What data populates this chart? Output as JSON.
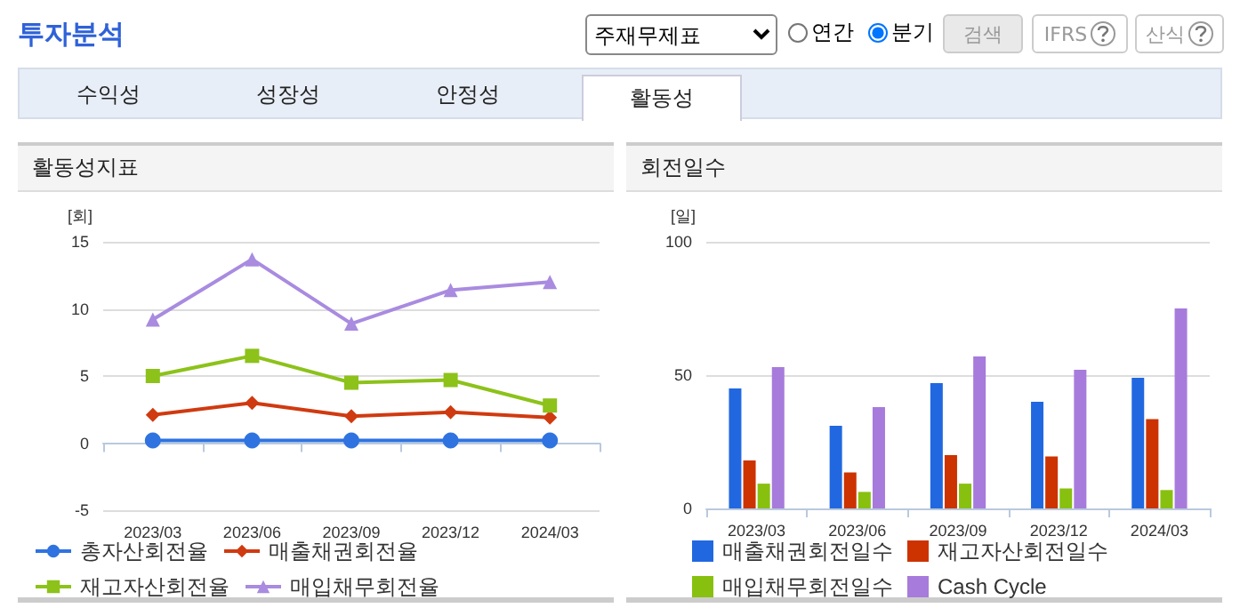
{
  "chart_data": [
    {
      "type": "line",
      "title": "활동성지표",
      "ylabel": "[회]",
      "annotations": [
        "투자분석",
        "주재무제표",
        "연간",
        "분기",
        "검색",
        "IFRS",
        "산식",
        "수익성",
        "성장성",
        "안정성",
        "활동성"
      ],
      "categories": [
        "2023/03",
        "2023/06",
        "2023/09",
        "2023/12",
        "2024/03"
      ],
      "series": [
        {
          "name": "총자산회전율",
          "color": "#2f73e0",
          "marker": "circle",
          "values": [
            0.2,
            0.2,
            0.2,
            0.2,
            0.2
          ]
        },
        {
          "name": "매출채권회전율",
          "color": "#d03a10",
          "marker": "diamond",
          "values": [
            2.1,
            3.0,
            2.0,
            2.3,
            1.9
          ]
        },
        {
          "name": "재고자산회전율",
          "color": "#8cc21a",
          "marker": "square",
          "values": [
            5.0,
            6.5,
            4.5,
            4.7,
            2.8
          ]
        },
        {
          "name": "매입채무회전율",
          "color": "#a98be0",
          "marker": "triangle",
          "values": [
            9.2,
            13.7,
            8.9,
            11.4,
            12.0
          ]
        }
      ],
      "ylim": [
        -5,
        15
      ],
      "yticks": [
        -5,
        0,
        5,
        10,
        15
      ],
      "grid": "y",
      "legend": "bottom"
    },
    {
      "type": "bar",
      "title": "회전일수",
      "ylabel": "[일]",
      "categories": [
        "2023/03",
        "2023/06",
        "2023/09",
        "2023/12",
        "2024/03"
      ],
      "series": [
        {
          "name": "매출채권회전일수",
          "color": "#2168e0",
          "values": [
            45,
            31,
            47,
            40,
            49
          ]
        },
        {
          "name": "재고자산회전일수",
          "color": "#cc3300",
          "values": [
            18,
            13.5,
            20,
            19.5,
            33.5
          ]
        },
        {
          "name": "매입채무회전일수",
          "color": "#88c010",
          "values": [
            9.3,
            6.2,
            9.3,
            7.5,
            6.9
          ]
        },
        {
          "name": "Cash Cycle",
          "color": "#a77bdb",
          "values": [
            53,
            38,
            57,
            52,
            75
          ]
        }
      ],
      "ylim": [
        0,
        100
      ],
      "yticks": [
        0,
        50,
        100
      ],
      "grid": "y",
      "legend": "bottom"
    }
  ]
}
